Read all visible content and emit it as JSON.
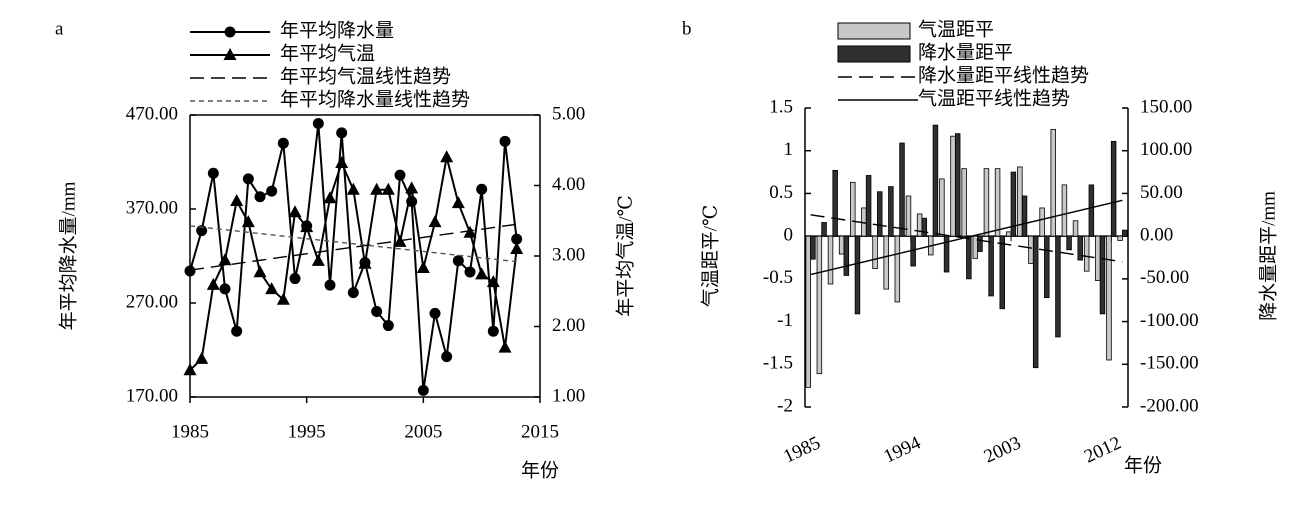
{
  "chart_data": [
    {
      "type": "line",
      "panel": "a",
      "x": [
        1985,
        1986,
        1987,
        1988,
        1989,
        1990,
        1991,
        1992,
        1993,
        1994,
        1995,
        1996,
        1997,
        1998,
        1999,
        2000,
        2001,
        2002,
        2003,
        2004,
        2005,
        2006,
        2007,
        2008,
        2009,
        2010,
        2011,
        2012,
        2013
      ],
      "xlim": [
        1985,
        2015
      ],
      "xticks": [
        1985,
        1995,
        2005,
        2015
      ],
      "xlabel": "年份",
      "ylabel": "年平均降水量/mm",
      "y2label": "年平均气温/℃",
      "ylim": [
        170,
        470
      ],
      "yticks": [
        {
          "value": 170,
          "label": "170.00"
        },
        {
          "value": 270,
          "label": "270.00"
        },
        {
          "value": 370,
          "label": "370.00"
        },
        {
          "value": 470,
          "label": "470.00"
        }
      ],
      "y2lim": [
        1,
        5
      ],
      "y2ticks": [
        {
          "value": 1,
          "label": "1.00"
        },
        {
          "value": 2,
          "label": "2.00"
        },
        {
          "value": 3,
          "label": "3.00"
        },
        {
          "value": 4,
          "label": "4.00"
        },
        {
          "value": 5,
          "label": "5.00"
        }
      ],
      "series": [
        {
          "name": "年平均降水量",
          "color": "#000000",
          "marker": "circle",
          "line_style": "solid",
          "values": [
            304,
            347,
            408,
            285,
            240,
            402,
            383,
            389,
            440,
            296,
            352,
            461,
            289,
            451,
            281,
            313,
            261,
            246,
            406,
            378,
            177,
            259,
            213,
            315,
            303,
            391,
            240,
            442,
            338
          ]
        },
        {
          "name": "年平均气温",
          "color": "#000000",
          "marker": "triangle",
          "line_style": "solid",
          "axis": "y2",
          "values": [
            1.38,
            1.54,
            2.59,
            2.94,
            3.78,
            3.48,
            2.77,
            2.53,
            2.38,
            3.62,
            3.41,
            2.93,
            3.82,
            4.32,
            3.94,
            2.89,
            3.94,
            3.94,
            3.2,
            3.96,
            2.83,
            3.48,
            4.4,
            3.75,
            3.33,
            2.74,
            2.63,
            1.7,
            3.1
          ]
        },
        {
          "name": "年平均气温线性趋势",
          "color": "#000000",
          "line_style": "long-dash",
          "axis": "y2",
          "x": [
            1985,
            2013
          ],
          "values": [
            2.8,
            3.45
          ]
        },
        {
          "name": "年平均降水量线性趋势",
          "color": "#555555",
          "line_style": "short-dash",
          "x": [
            1985,
            2013
          ],
          "values": [
            352,
            314
          ]
        }
      ]
    },
    {
      "type": "bar",
      "panel": "b",
      "x": [
        1985,
        1986,
        1987,
        1988,
        1989,
        1990,
        1991,
        1992,
        1993,
        1994,
        1995,
        1996,
        1997,
        1998,
        1999,
        2000,
        2001,
        2002,
        2003,
        2004,
        2005,
        2006,
        2007,
        2008,
        2009,
        2010,
        2011,
        2012,
        2013
      ],
      "xlim": [
        1984.5,
        2013.5
      ],
      "xticks": [
        1985,
        1994,
        2003,
        2012
      ],
      "xlabel": "年份",
      "ylabel": "气温距平/℃",
      "y2label": "降水量距平/mm",
      "ylim": [
        -2,
        1.5
      ],
      "yticks": [
        -2,
        -1.5,
        -1,
        -0.5,
        0,
        0.5,
        1,
        1.5
      ],
      "y2lim": [
        -200,
        150
      ],
      "y2ticks": [
        {
          "value": -200,
          "label": "-200.00"
        },
        {
          "value": -150,
          "label": "-150.00"
        },
        {
          "value": -100,
          "label": "-100.00"
        },
        {
          "value": -50,
          "label": "-50.00"
        },
        {
          "value": 0,
          "label": "0.00"
        },
        {
          "value": 50,
          "label": "50.00"
        },
        {
          "value": 100,
          "label": "100.00"
        },
        {
          "value": 150,
          "label": "150.00"
        }
      ],
      "series": [
        {
          "name": "气温距平",
          "color": "#c8c8c8",
          "values": [
            -1.77,
            -1.61,
            -0.56,
            -0.21,
            0.63,
            0.33,
            -0.38,
            -0.62,
            -0.77,
            0.47,
            0.26,
            -0.22,
            0.67,
            1.17,
            0.79,
            -0.26,
            0.79,
            0.79,
            0.05,
            0.81,
            -0.32,
            0.33,
            1.25,
            0.6,
            0.18,
            -0.41,
            -0.52,
            -1.45,
            -0.05
          ]
        },
        {
          "name": "降水量距平",
          "color": "#303030",
          "axis": "y2",
          "values": [
            -27,
            16,
            77,
            -46,
            -91,
            71,
            52,
            58,
            109,
            -35,
            21,
            130,
            -42,
            120,
            -50,
            -18,
            -70,
            -85,
            75,
            47,
            -154,
            -72,
            -118,
            -16,
            -28,
            60,
            -91,
            111,
            7
          ]
        },
        {
          "name": "降水量距平线性趋势",
          "type": "line",
          "color": "#000000",
          "line_style": "long-dash",
          "axis": "y2",
          "x": [
            1985,
            2013
          ],
          "values": [
            25,
            -30
          ]
        },
        {
          "name": "气温距平线性趋势",
          "type": "line",
          "color": "#000000",
          "line_style": "solid",
          "x": [
            1985,
            2013
          ],
          "values": [
            -0.45,
            0.42
          ]
        }
      ]
    }
  ]
}
